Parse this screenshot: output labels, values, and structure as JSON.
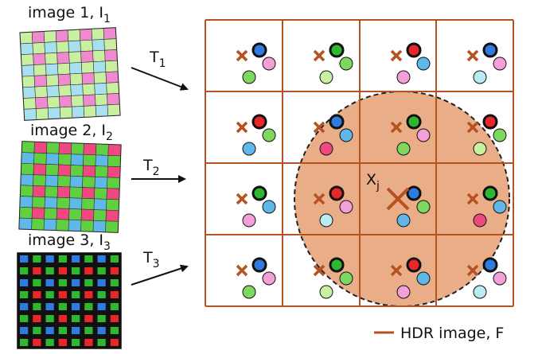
{
  "images": [
    {
      "label": "image 1, I",
      "subscript": "1"
    },
    {
      "label": "image 2, I",
      "subscript": "2"
    },
    {
      "label": "image 3, I",
      "subscript": "3"
    }
  ],
  "transforms": [
    {
      "label": "T",
      "subscript": "1"
    },
    {
      "label": "T",
      "subscript": "2"
    },
    {
      "label": "T",
      "subscript": "3"
    }
  ],
  "center_label": {
    "label": "X",
    "subscript": "j"
  },
  "legend": "HDR image, F"
}
